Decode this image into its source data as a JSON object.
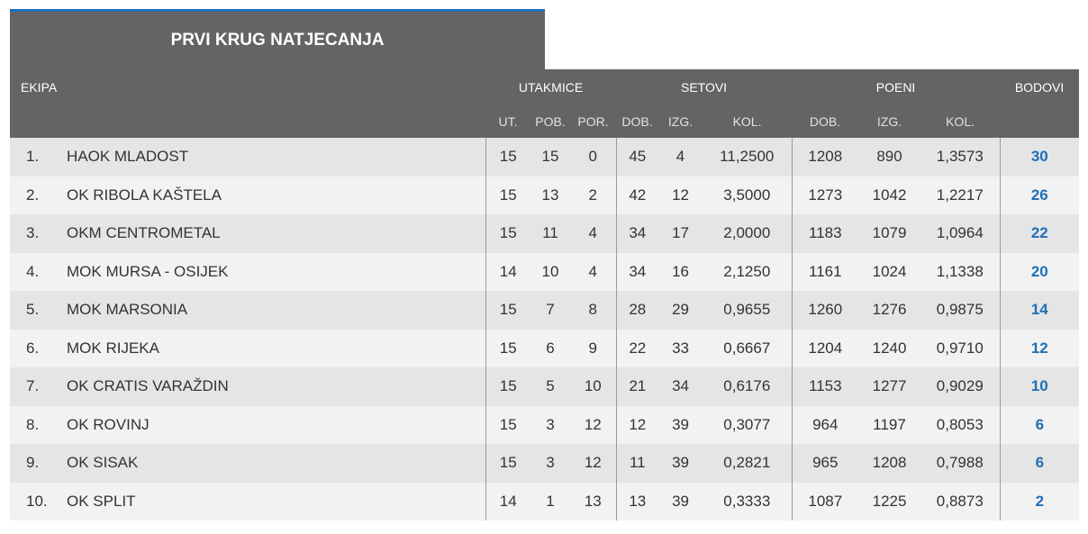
{
  "title": "PRVI KRUG NATJECANJA",
  "header": {
    "ekipa": "EKIPA",
    "utakmice": "UTAKMICE",
    "setovi": "SETOVI",
    "poeni": "POENI",
    "bodovi": "BODOVI",
    "sub": {
      "ut": "UT.",
      "pob": "POB.",
      "por": "POR.",
      "set_dob": "DOB.",
      "set_izg": "IZG.",
      "set_kol": "KOL.",
      "poeni_dob": "DOB.",
      "poeni_izg": "IZG.",
      "poeni_kol": "KOL."
    }
  },
  "colors": {
    "header_bg": "#646464",
    "accent": "#1f6fb6",
    "row_odd": "#e5e5e5",
    "row_even": "#f2f2f2"
  },
  "rows": [
    {
      "rank": "1.",
      "team": "HAOK MLADOST",
      "ut": "15",
      "pob": "15",
      "por": "0",
      "set_dob": "45",
      "set_izg": "4",
      "set_kol": "11,2500",
      "poeni_dob": "1208",
      "poeni_izg": "890",
      "poeni_kol": "1,3573",
      "bodovi": "30"
    },
    {
      "rank": "2.",
      "team": "OK RIBOLA KAŠTELA",
      "ut": "15",
      "pob": "13",
      "por": "2",
      "set_dob": "42",
      "set_izg": "12",
      "set_kol": "3,5000",
      "poeni_dob": "1273",
      "poeni_izg": "1042",
      "poeni_kol": "1,2217",
      "bodovi": "26"
    },
    {
      "rank": "3.",
      "team": "OKM CENTROMETAL",
      "ut": "15",
      "pob": "11",
      "por": "4",
      "set_dob": "34",
      "set_izg": "17",
      "set_kol": "2,0000",
      "poeni_dob": "1183",
      "poeni_izg": "1079",
      "poeni_kol": "1,0964",
      "bodovi": "22"
    },
    {
      "rank": "4.",
      "team": "MOK MURSA - OSIJEK",
      "ut": "14",
      "pob": "10",
      "por": "4",
      "set_dob": "34",
      "set_izg": "16",
      "set_kol": "2,1250",
      "poeni_dob": "1161",
      "poeni_izg": "1024",
      "poeni_kol": "1,1338",
      "bodovi": "20"
    },
    {
      "rank": "5.",
      "team": "MOK MARSONIA",
      "ut": "15",
      "pob": "7",
      "por": "8",
      "set_dob": "28",
      "set_izg": "29",
      "set_kol": "0,9655",
      "poeni_dob": "1260",
      "poeni_izg": "1276",
      "poeni_kol": "0,9875",
      "bodovi": "14"
    },
    {
      "rank": "6.",
      "team": "MOK RIJEKA",
      "ut": "15",
      "pob": "6",
      "por": "9",
      "set_dob": "22",
      "set_izg": "33",
      "set_kol": "0,6667",
      "poeni_dob": "1204",
      "poeni_izg": "1240",
      "poeni_kol": "0,9710",
      "bodovi": "12"
    },
    {
      "rank": "7.",
      "team": "OK CRATIS VARAŽDIN",
      "ut": "15",
      "pob": "5",
      "por": "10",
      "set_dob": "21",
      "set_izg": "34",
      "set_kol": "0,6176",
      "poeni_dob": "1153",
      "poeni_izg": "1277",
      "poeni_kol": "0,9029",
      "bodovi": "10"
    },
    {
      "rank": "8.",
      "team": "OK ROVINJ",
      "ut": "15",
      "pob": "3",
      "por": "12",
      "set_dob": "12",
      "set_izg": "39",
      "set_kol": "0,3077",
      "poeni_dob": "964",
      "poeni_izg": "1197",
      "poeni_kol": "0,8053",
      "bodovi": "6"
    },
    {
      "rank": "9.",
      "team": "OK SISAK",
      "ut": "15",
      "pob": "3",
      "por": "12",
      "set_dob": "11",
      "set_izg": "39",
      "set_kol": "0,2821",
      "poeni_dob": "965",
      "poeni_izg": "1208",
      "poeni_kol": "0,7988",
      "bodovi": "6"
    },
    {
      "rank": "10.",
      "team": "OK SPLIT",
      "ut": "14",
      "pob": "1",
      "por": "13",
      "set_dob": "13",
      "set_izg": "39",
      "set_kol": "0,3333",
      "poeni_dob": "1087",
      "poeni_izg": "1225",
      "poeni_kol": "0,8873",
      "bodovi": "2"
    }
  ]
}
